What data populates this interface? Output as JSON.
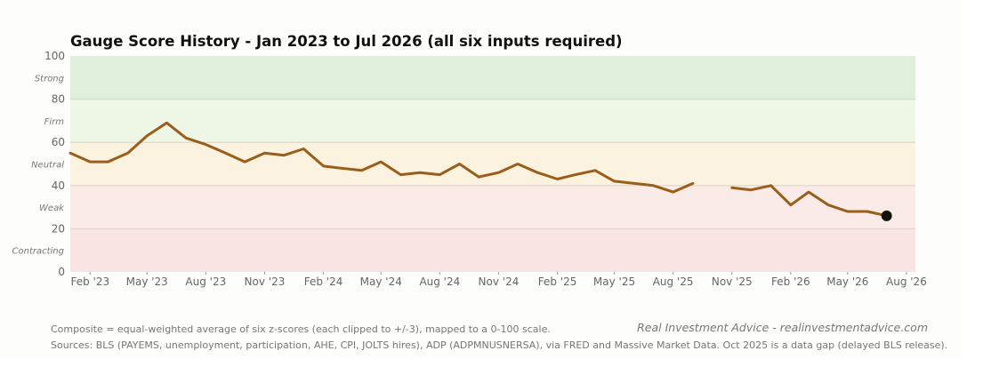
{
  "chart_data": {
    "type": "line",
    "title": "Gauge Score History - Jan 2023 to Jul 2026 (all six inputs required)",
    "xlabel": "",
    "ylabel": "",
    "ylim": [
      0,
      100
    ],
    "y_ticks": [
      0,
      20,
      40,
      60,
      80,
      100
    ],
    "x_range": [
      "2023-01-01",
      "2026-08-15"
    ],
    "x_ticks": [
      {
        "date": "2023-02-01",
        "label": "Feb '23"
      },
      {
        "date": "2023-05-01",
        "label": "May '23"
      },
      {
        "date": "2023-08-01",
        "label": "Aug '23"
      },
      {
        "date": "2023-11-01",
        "label": "Nov '23"
      },
      {
        "date": "2024-02-01",
        "label": "Feb '24"
      },
      {
        "date": "2024-05-01",
        "label": "May '24"
      },
      {
        "date": "2024-08-01",
        "label": "Aug '24"
      },
      {
        "date": "2024-11-01",
        "label": "Nov '24"
      },
      {
        "date": "2025-02-01",
        "label": "Feb '25"
      },
      {
        "date": "2025-05-01",
        "label": "May '25"
      },
      {
        "date": "2025-08-01",
        "label": "Aug '25"
      },
      {
        "date": "2025-11-01",
        "label": "Nov '25"
      },
      {
        "date": "2026-02-01",
        "label": "Feb '26"
      },
      {
        "date": "2026-05-01",
        "label": "May '26"
      },
      {
        "date": "2026-08-01",
        "label": "Aug '26"
      }
    ],
    "zones": [
      {
        "label": "Contracting",
        "from": 0,
        "to": 20,
        "color": "#f8e4e2"
      },
      {
        "label": "Weak",
        "from": 20,
        "to": 40,
        "color": "#faebe8"
      },
      {
        "label": "Neutral",
        "from": 40,
        "to": 60,
        "color": "#fcf2e0"
      },
      {
        "label": "Firm",
        "from": 60,
        "to": 80,
        "color": "#eef6e5"
      },
      {
        "label": "Strong",
        "from": 80,
        "to": 100,
        "color": "#dfefdc"
      }
    ],
    "series": [
      {
        "line_color": "#9b5e1a",
        "points": [
          {
            "x": "2023-01-01",
            "y": 55
          },
          {
            "x": "2023-02-01",
            "y": 51
          },
          {
            "x": "2023-03-01",
            "y": 51
          },
          {
            "x": "2023-04-01",
            "y": 55
          },
          {
            "x": "2023-05-01",
            "y": 63
          },
          {
            "x": "2023-06-01",
            "y": 69
          },
          {
            "x": "2023-07-01",
            "y": 62
          },
          {
            "x": "2023-08-01",
            "y": 59
          },
          {
            "x": "2023-09-01",
            "y": 55
          },
          {
            "x": "2023-10-01",
            "y": 51
          },
          {
            "x": "2023-11-01",
            "y": 55
          },
          {
            "x": "2023-12-01",
            "y": 54
          },
          {
            "x": "2024-01-01",
            "y": 57
          },
          {
            "x": "2024-02-01",
            "y": 49
          },
          {
            "x": "2024-03-01",
            "y": 48
          },
          {
            "x": "2024-04-01",
            "y": 47
          },
          {
            "x": "2024-05-01",
            "y": 51
          },
          {
            "x": "2024-06-01",
            "y": 45
          },
          {
            "x": "2024-07-01",
            "y": 46
          },
          {
            "x": "2024-08-01",
            "y": 45
          },
          {
            "x": "2024-09-01",
            "y": 50
          },
          {
            "x": "2024-10-01",
            "y": 44
          },
          {
            "x": "2024-11-01",
            "y": 46
          },
          {
            "x": "2024-12-01",
            "y": 50
          },
          {
            "x": "2025-01-01",
            "y": 46
          },
          {
            "x": "2025-02-01",
            "y": 43
          },
          {
            "x": "2025-03-01",
            "y": 45
          },
          {
            "x": "2025-04-01",
            "y": 47
          },
          {
            "x": "2025-05-01",
            "y": 42
          },
          {
            "x": "2025-06-01",
            "y": 41
          },
          {
            "x": "2025-07-01",
            "y": 40
          },
          {
            "x": "2025-08-01",
            "y": 37
          },
          {
            "x": "2025-09-01",
            "y": 41
          },
          {
            "x": "2025-10-01",
            "y": null
          },
          {
            "x": "2025-11-01",
            "y": 39
          },
          {
            "x": "2025-12-01",
            "y": 38
          },
          {
            "x": "2026-01-01",
            "y": 40
          },
          {
            "x": "2026-02-01",
            "y": 31
          },
          {
            "x": "2026-03-01",
            "y": 37
          },
          {
            "x": "2026-04-01",
            "y": 31
          },
          {
            "x": "2026-05-01",
            "y": 28
          },
          {
            "x": "2026-06-01",
            "y": 28
          },
          {
            "x": "2026-07-01",
            "y": 26
          }
        ]
      }
    ],
    "latest_marker_color": "#111111",
    "grid": false
  },
  "footer": {
    "method": "Composite = equal-weighted average of six z-scores (each clipped to +/-3), mapped to a 0-100 scale.",
    "sources": "Sources: BLS (PAYEMS, unemployment, participation, AHE, CPI, JOLTS hires), ADP (ADPMNUSNERSA), via FRED and Massive Market Data. Oct 2025 is a data gap (delayed BLS release).",
    "credit": "Real Investment Advice - realinvestmentadvice.com"
  }
}
